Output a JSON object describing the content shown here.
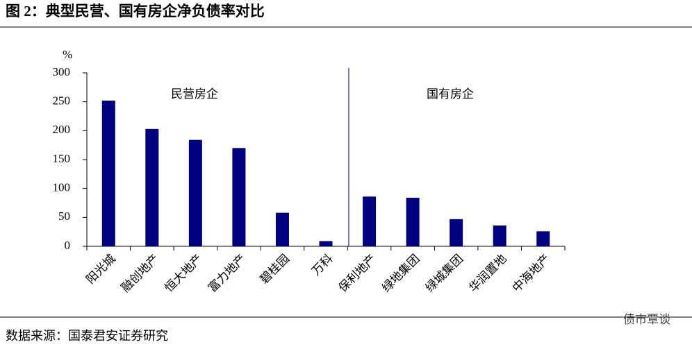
{
  "chart_data": {
    "type": "bar",
    "title": "图 2：典型民营、国有房企净负债率对比",
    "y_label": "%",
    "categories": [
      "阳光城",
      "融创地产",
      "恒大地产",
      "富力地产",
      "碧桂园",
      "万科",
      "保利地产",
      "绿地集团",
      "绿城集团",
      "华润置地",
      "中海地产"
    ],
    "values": [
      252,
      203,
      184,
      170,
      58,
      9,
      86,
      84,
      47,
      36,
      26
    ],
    "color": "#000080",
    "ylim": [
      0,
      300
    ],
    "yticks": [
      0,
      50,
      100,
      150,
      200,
      250,
      300
    ],
    "annotations": [
      "民营房企",
      "国有房企"
    ],
    "source": "数据来源：国泰君安证券研究"
  },
  "watermark": "债市覃谈"
}
